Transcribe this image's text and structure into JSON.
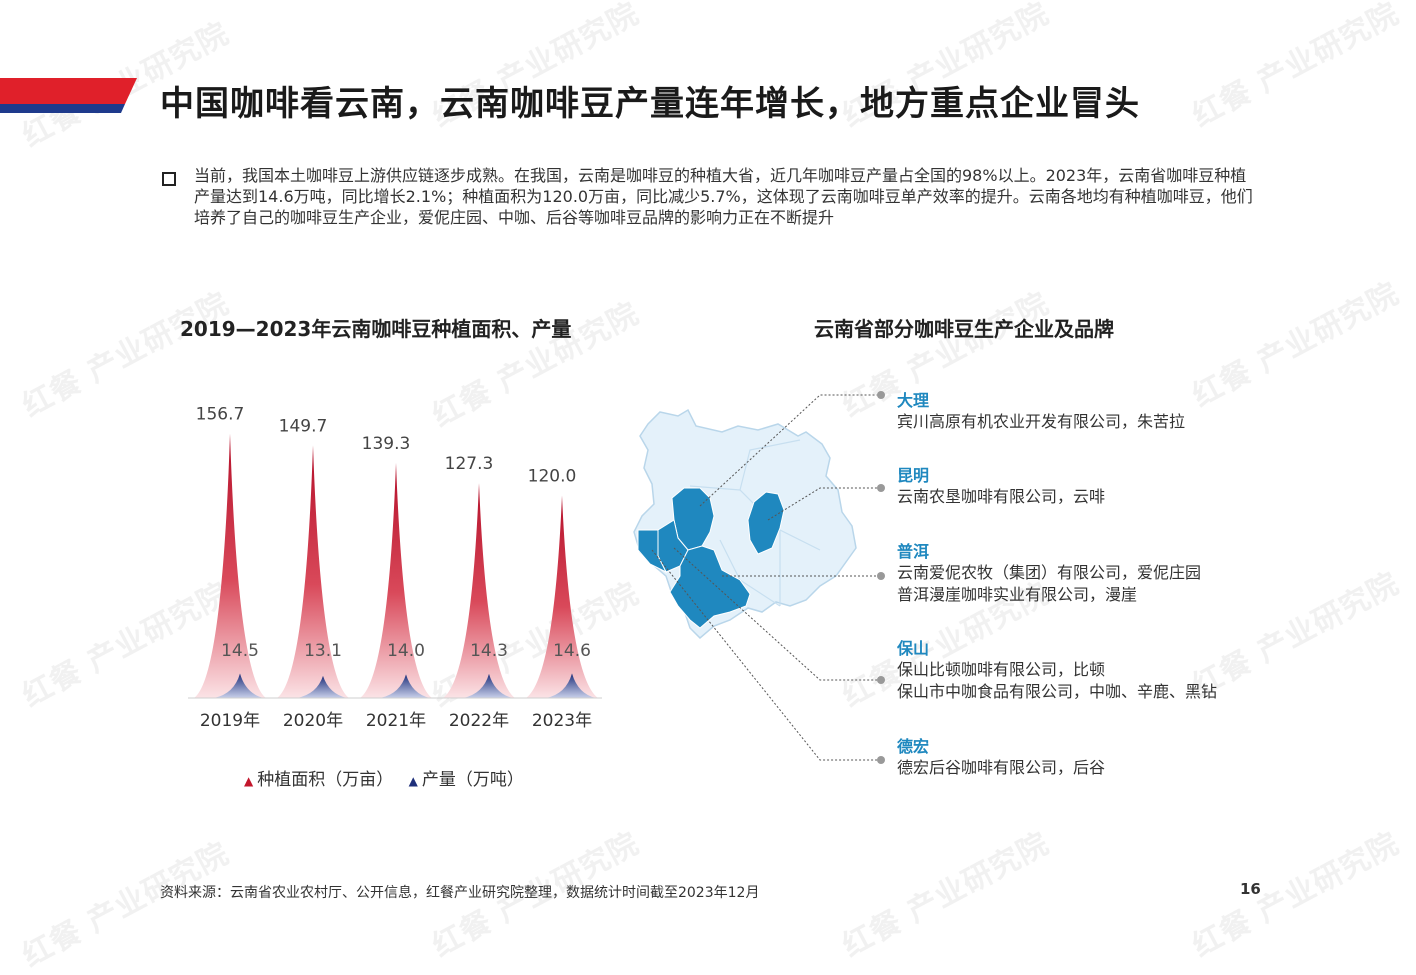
{
  "colors": {
    "brand_red": "#e0202a",
    "brand_blue": "#1e3a8c",
    "area_red": "#c3162c",
    "prod_blue": "#1e2f7a",
    "map_highlight": "#1f88bf",
    "map_base": "#e4f1fa",
    "region_label": "#1f88bf"
  },
  "watermark": "红餐 产业研究院",
  "header": {
    "title": "中国咖啡看云南，云南咖啡豆产量连年增长，地方重点企业冒头"
  },
  "bullet": {
    "text": "当前，我国本土咖啡豆上游供应链逐步成熟。在我国，云南是咖啡豆的种植大省，近几年咖啡豆产量占全国的98%以上。2023年，云南省咖啡豆种植产量达到14.6万吨，同比增长2.1%；种植面积为120.0万亩，同比减少5.7%，这体现了云南咖啡豆单产效率的提升。云南各地均有种植咖啡豆，他们培养了自己的咖啡豆生产企业，爱伲庄园、中咖、后谷等咖啡豆品牌的影响力正在不断提升"
  },
  "chart_data": {
    "type": "area",
    "title": "2019—2023年云南咖啡豆种植面积、产量",
    "categories": [
      "2019年",
      "2020年",
      "2021年",
      "2022年",
      "2023年"
    ],
    "series": [
      {
        "name": "种植面积（万亩）",
        "values": [
          156.7,
          149.7,
          139.3,
          127.3,
          120.0
        ],
        "labels": [
          "156.7",
          "149.7",
          "139.3",
          "127.3",
          "120.0"
        ],
        "color": "#c3162c"
      },
      {
        "name": "产量（万吨）",
        "values": [
          14.5,
          13.1,
          14.0,
          14.3,
          14.6
        ],
        "labels": [
          "14.5",
          "13.1",
          "14.0",
          "14.3",
          "14.6"
        ],
        "color": "#1e2f7a"
      }
    ],
    "ylim": [
      0,
      160
    ],
    "xlabel": "",
    "ylabel": "",
    "grid": false,
    "legend_position": "bottom"
  },
  "right_panel": {
    "title": "云南省部分咖啡豆生产企业及品牌",
    "regions": [
      {
        "name": "大理",
        "lines": [
          "宾川高原有机农业开发有限公司，朱苦拉"
        ]
      },
      {
        "name": "昆明",
        "lines": [
          "云南农垦咖啡有限公司，云啡"
        ]
      },
      {
        "name": "普洱",
        "lines": [
          "云南爱伲农牧（集团）有限公司，爱伲庄园",
          "普洱漫崖咖啡实业有限公司，漫崖"
        ]
      },
      {
        "name": "保山",
        "lines": [
          "保山比顿咖啡有限公司，比顿",
          "保山市中咖食品有限公司，中咖、辛鹿、黑钻"
        ]
      },
      {
        "name": "德宏",
        "lines": [
          "德宏后谷咖啡有限公司，后谷"
        ]
      }
    ]
  },
  "footer": {
    "source": "资料来源：云南省农业农村厅、公开信息，红餐产业研究院整理，数据统计时间截至2023年12月",
    "page_number": "16"
  }
}
